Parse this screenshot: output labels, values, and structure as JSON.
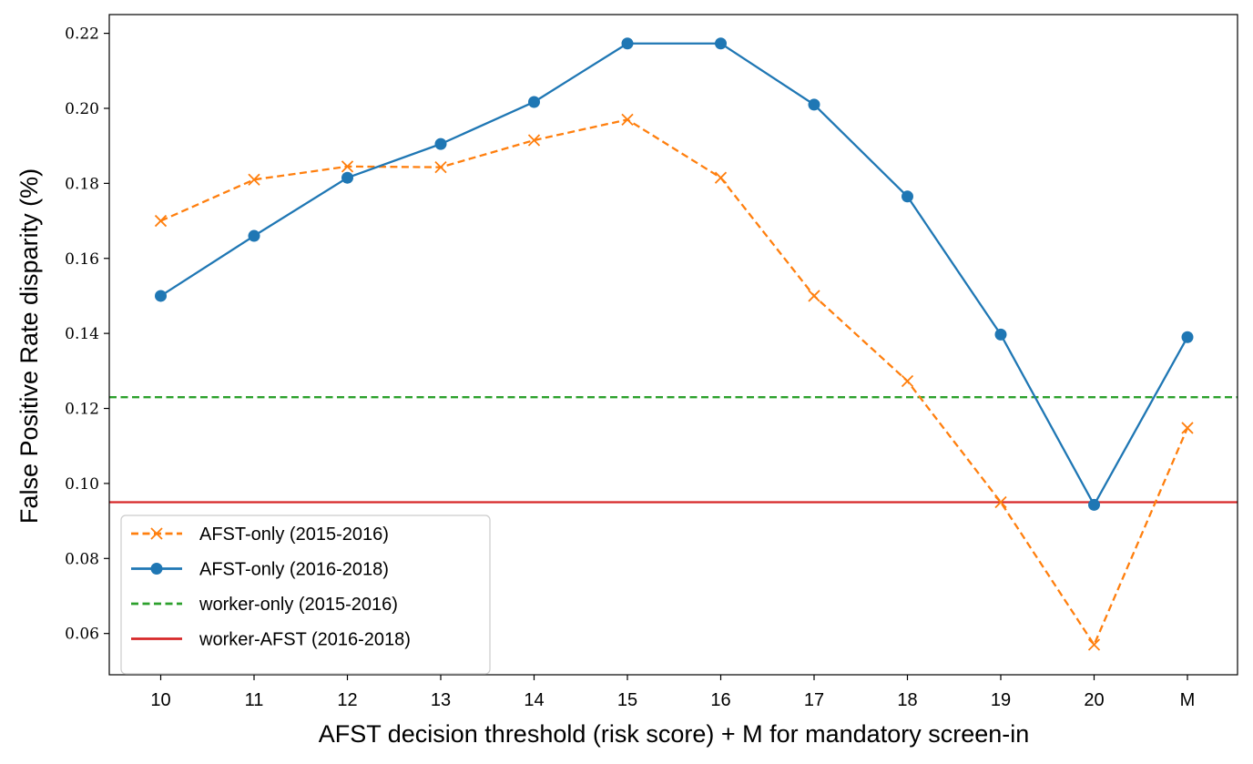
{
  "chart_data": {
    "type": "line",
    "xlabel": "AFST decision threshold (risk score) + M for mandatory screen-in",
    "ylabel": "False Positive Rate disparity (%)",
    "categories": [
      "10",
      "11",
      "12",
      "13",
      "14",
      "15",
      "16",
      "17",
      "18",
      "19",
      "20",
      "M"
    ],
    "ylim": [
      0.049,
      0.225
    ],
    "yticks": [
      0.06,
      0.08,
      0.1,
      0.12,
      0.14,
      0.16,
      0.18,
      0.2,
      0.22
    ],
    "ytick_labels": [
      "0.06",
      "0.08",
      "0.10",
      "0.12",
      "0.14",
      "0.16",
      "0.18",
      "0.20",
      "0.22"
    ],
    "grid": false,
    "legend_position": "lower-left",
    "series": [
      {
        "name": "AFST-only (2015-2016)",
        "values": [
          0.17,
          0.181,
          0.1845,
          0.1843,
          0.1915,
          0.197,
          0.1815,
          0.15,
          0.1273,
          0.095,
          0.057,
          0.1148
        ],
        "color": "#ff7f0e",
        "line_style": "dashed",
        "marker": "x"
      },
      {
        "name": "AFST-only (2016-2018)",
        "values": [
          0.15,
          0.166,
          0.1815,
          0.1905,
          0.2017,
          0.2173,
          0.2173,
          0.201,
          0.1765,
          0.1397,
          0.0943,
          0.139
        ],
        "color": "#1f77b4",
        "line_style": "solid",
        "marker": "circle"
      }
    ],
    "reference_lines": [
      {
        "name": "worker-only (2015-2016)",
        "y": 0.123,
        "color": "#2ca02c",
        "line_style": "dashed"
      },
      {
        "name": "worker-AFST (2016-2018)",
        "y": 0.095,
        "color": "#d62728",
        "line_style": "solid"
      }
    ]
  }
}
